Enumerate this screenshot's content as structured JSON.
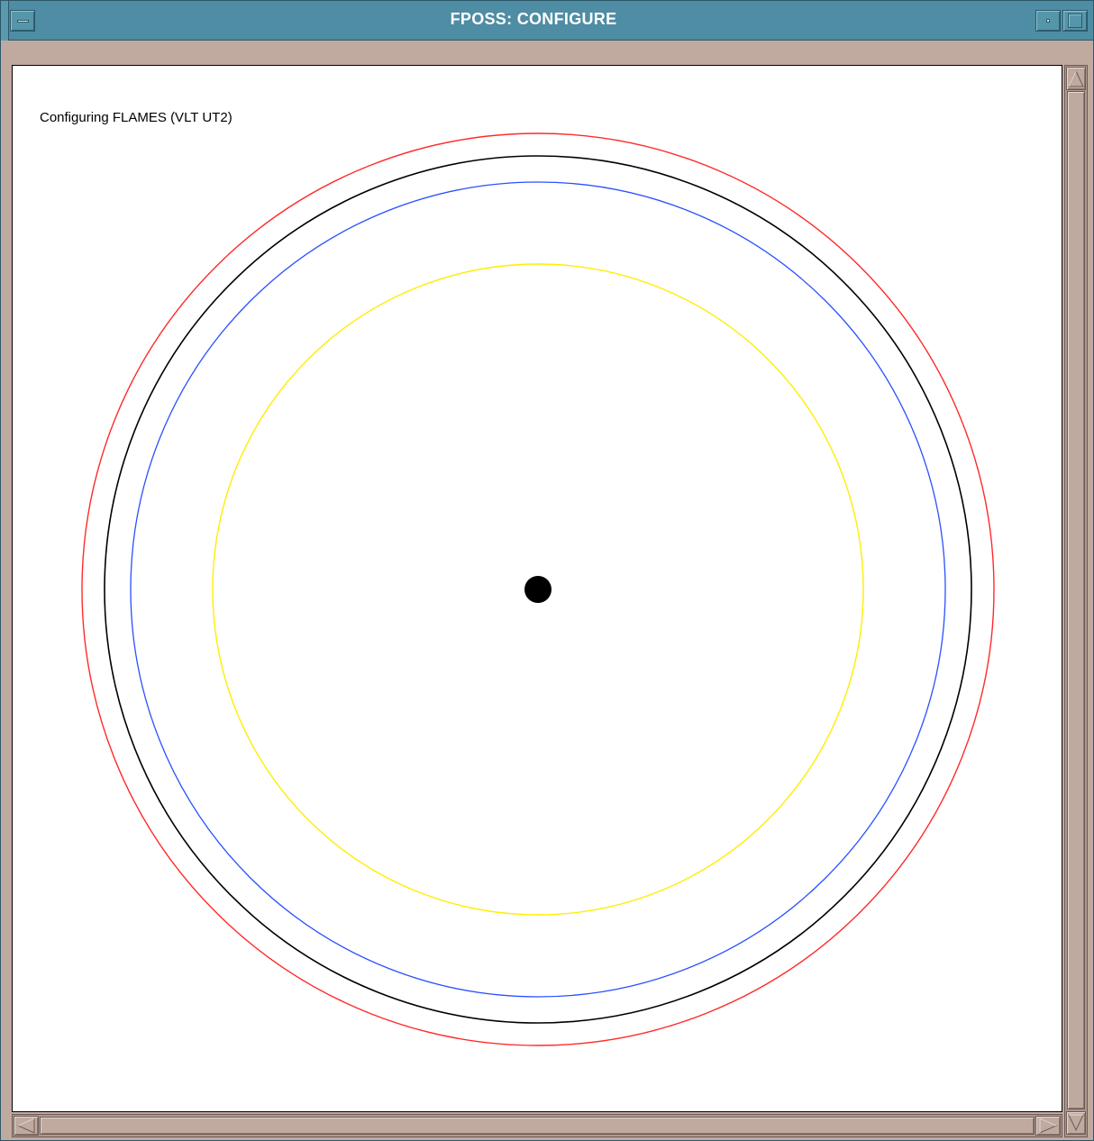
{
  "window": {
    "title": "FPOSS: CONFIGURE"
  },
  "canvas": {
    "label": "Configuring FLAMES (VLT UT2)",
    "circles": [
      {
        "name": "red-circle",
        "color": "#ff2a2a"
      },
      {
        "name": "black-circle",
        "color": "#000000"
      },
      {
        "name": "blue-circle",
        "color": "#2a50ff"
      },
      {
        "name": "yellow-circle",
        "color": "#ffee00"
      }
    ],
    "center_marker_color": "#000000"
  },
  "icons": {
    "window_menu": "window-menu-icon",
    "minimize": "minimize-icon",
    "maximize": "maximize-icon",
    "scroll_up": "arrow-up-icon",
    "scroll_down": "arrow-down-icon",
    "scroll_left": "arrow-left-icon",
    "scroll_right": "arrow-right-icon"
  }
}
